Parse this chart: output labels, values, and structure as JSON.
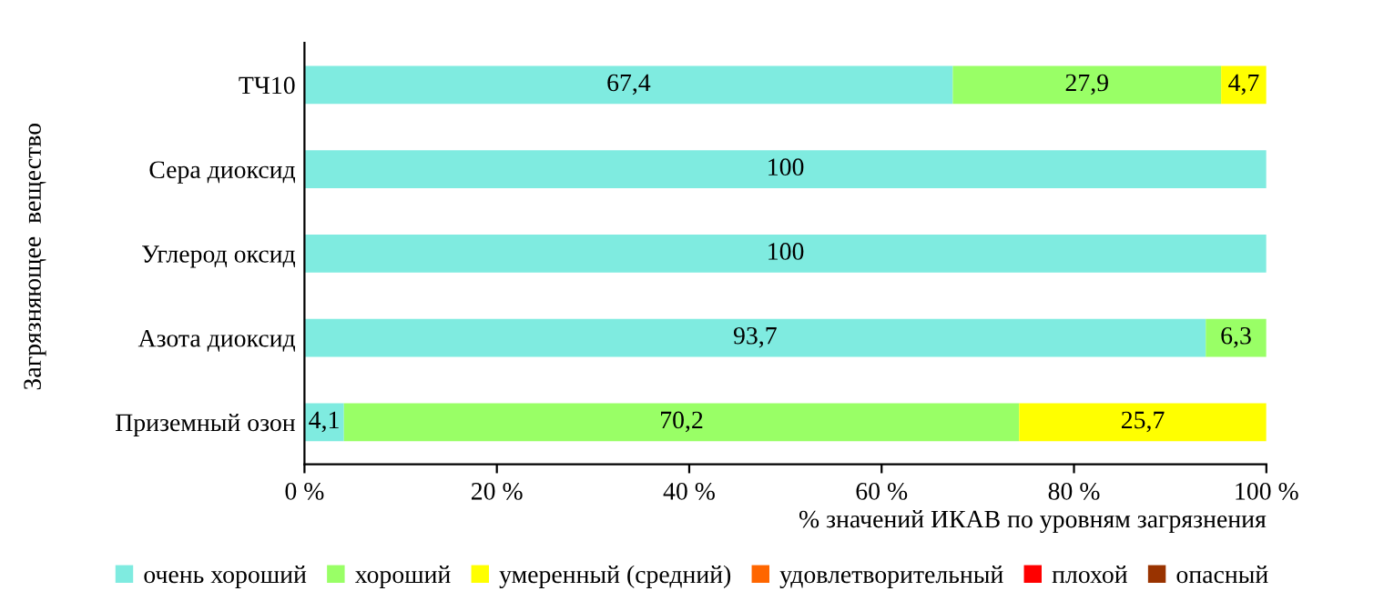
{
  "chart_data": {
    "type": "bar",
    "orientation": "horizontal",
    "stacked": true,
    "categories": [
      "ТЧ10",
      "Сера диоксид",
      "Углерод оксид",
      "Азота диоксид",
      "Приземный озон"
    ],
    "series": [
      {
        "name": "очень хороший",
        "color": "#7febe0",
        "values": [
          67.4,
          100,
          100,
          93.7,
          4.1
        ],
        "value_labels": [
          "67,4",
          "100",
          "100",
          "93,7",
          "4,1"
        ]
      },
      {
        "name": "хороший",
        "color": "#99ff66",
        "values": [
          27.9,
          null,
          null,
          6.3,
          70.2
        ],
        "value_labels": [
          "27,9",
          null,
          null,
          "6,3",
          "70,2"
        ]
      },
      {
        "name": "умеренный (средний)",
        "color": "#ffff00",
        "values": [
          4.7,
          null,
          null,
          null,
          25.7
        ],
        "value_labels": [
          "4,7",
          null,
          null,
          null,
          "25,7"
        ]
      },
      {
        "name": "удовлетворительный",
        "color": "#ff6600",
        "values": [
          null,
          null,
          null,
          null,
          null
        ]
      },
      {
        "name": "плохой",
        "color": "#ff0000",
        "values": [
          null,
          null,
          null,
          null,
          null
        ]
      },
      {
        "name": "опасный",
        "color": "#993300",
        "values": [
          null,
          null,
          null,
          null,
          null
        ]
      }
    ],
    "xlim": [
      0,
      100
    ],
    "xticks": [
      {
        "value": 0,
        "label": "0 %"
      },
      {
        "value": 20,
        "label": "20 %"
      },
      {
        "value": 40,
        "label": "40 %"
      },
      {
        "value": 60,
        "label": "60 %"
      },
      {
        "value": 80,
        "label": "80 %"
      },
      {
        "value": 100,
        "label": "100 %"
      }
    ],
    "xlabel": "% значений ИКАВ по уровням загрязнения",
    "ylabel": "Загрязняющее  вещество",
    "legend": "bottom",
    "grid": false
  }
}
